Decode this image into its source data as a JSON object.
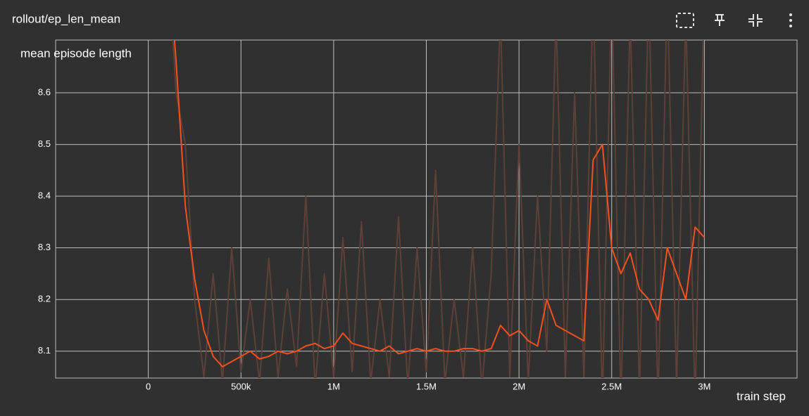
{
  "chart_data": {
    "type": "line",
    "title": "rollout/ep_len_mean",
    "y_label": "mean episode length",
    "x_label": "train step",
    "xlim": [
      -500000,
      3500000
    ],
    "ylim": [
      8.048,
      8.702
    ],
    "xticks": [
      0,
      {
        "value": 500000,
        "label": "500k"
      },
      {
        "value": 1000000,
        "label": "1M"
      },
      {
        "value": 1500000,
        "label": "1.5M"
      },
      {
        "value": 2000000,
        "label": "2M"
      },
      {
        "value": 2500000,
        "label": "2.5M"
      },
      {
        "value": 3000000,
        "label": "3M"
      }
    ],
    "yticks": [
      8.1,
      8.2,
      8.3,
      8.4,
      8.5,
      8.6
    ],
    "grid": true,
    "x": [
      100000,
      150000,
      200000,
      250000,
      300000,
      350000,
      400000,
      450000,
      500000,
      550000,
      600000,
      650000,
      700000,
      750000,
      800000,
      850000,
      900000,
      950000,
      1000000,
      1050000,
      1100000,
      1150000,
      1200000,
      1250000,
      1300000,
      1350000,
      1400000,
      1450000,
      1500000,
      1550000,
      1600000,
      1650000,
      1700000,
      1750000,
      1800000,
      1850000,
      1900000,
      1950000,
      2000000,
      2050000,
      2100000,
      2150000,
      2200000,
      2250000,
      2300000,
      2350000,
      2400000,
      2450000,
      2500000,
      2550000,
      2600000,
      2650000,
      2700000,
      2750000,
      2800000,
      2850000,
      2900000,
      2950000,
      3000000
    ],
    "series": [
      {
        "color": "#5d4037",
        "values": [
          8.9,
          8.6,
          8.5,
          8.2,
          8.05,
          8.25,
          8.04,
          8.3,
          8.06,
          8.2,
          8.04,
          8.28,
          8.05,
          8.22,
          8.07,
          8.4,
          8.03,
          8.25,
          8.05,
          8.32,
          8.06,
          8.35,
          8.04,
          8.2,
          8.05,
          8.36,
          8.03,
          8.3,
          8.06,
          8.45,
          8.04,
          8.2,
          8.05,
          8.3,
          8.03,
          8.25,
          8.75,
          8.05,
          8.5,
          8.04,
          8.4,
          8.1,
          8.75,
          8.05,
          8.6,
          8.05,
          8.8,
          8.0,
          8.8,
          8.0,
          8.75,
          8.02,
          8.8,
          8.0,
          8.8,
          8.03,
          8.75,
          8.0,
          8.8
        ]
      },
      {
        "color": "#f4511e",
        "values": [
          8.9,
          8.66,
          8.38,
          8.24,
          8.14,
          8.09,
          8.07,
          8.08,
          8.09,
          8.1,
          8.085,
          8.09,
          8.1,
          8.095,
          8.1,
          8.11,
          8.115,
          8.105,
          8.11,
          8.135,
          8.115,
          8.11,
          8.105,
          8.1,
          8.11,
          8.095,
          8.1,
          8.105,
          8.1,
          8.105,
          8.1,
          8.1,
          8.105,
          8.105,
          8.1,
          8.105,
          8.15,
          8.13,
          8.14,
          8.12,
          8.11,
          8.2,
          8.15,
          8.14,
          8.13,
          8.12,
          8.47,
          8.5,
          8.3,
          8.25,
          8.29,
          8.22,
          8.2,
          8.16,
          8.3,
          8.25,
          8.2,
          8.34,
          8.32
        ]
      }
    ]
  }
}
